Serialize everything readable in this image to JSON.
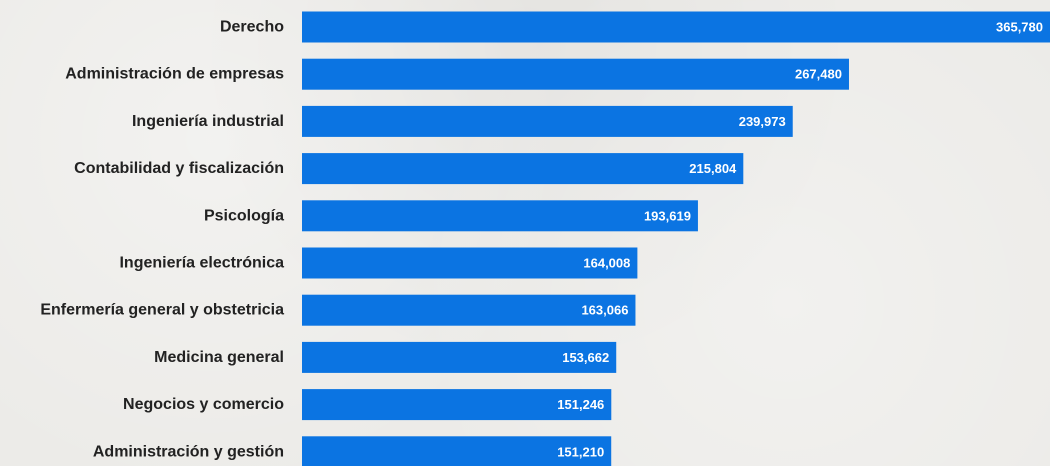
{
  "chart_data": {
    "type": "bar",
    "orientation": "horizontal",
    "categories": [
      "Derecho",
      "Administración de empresas",
      "Ingeniería industrial",
      "Contabilidad y fiscalización",
      "Psicología",
      "Ingeniería electrónica",
      "Enfermería general y obstetricia",
      "Medicina general",
      "Negocios y comercio",
      "Administración y gestión"
    ],
    "values": [
      365780,
      267480,
      239973,
      215804,
      193619,
      164008,
      163066,
      153662,
      151246,
      151210
    ],
    "value_labels": [
      "365,780",
      "267,480",
      "239,973",
      "215,804",
      "193,619",
      "164,008",
      "163,066",
      "153,662",
      "151,246",
      "151,210"
    ],
    "bar_color": "#0b74e2",
    "label_color": "#222222",
    "value_label_color": "#ffffff",
    "background_color": "#ecebe8",
    "grid": false,
    "legend": "none"
  }
}
